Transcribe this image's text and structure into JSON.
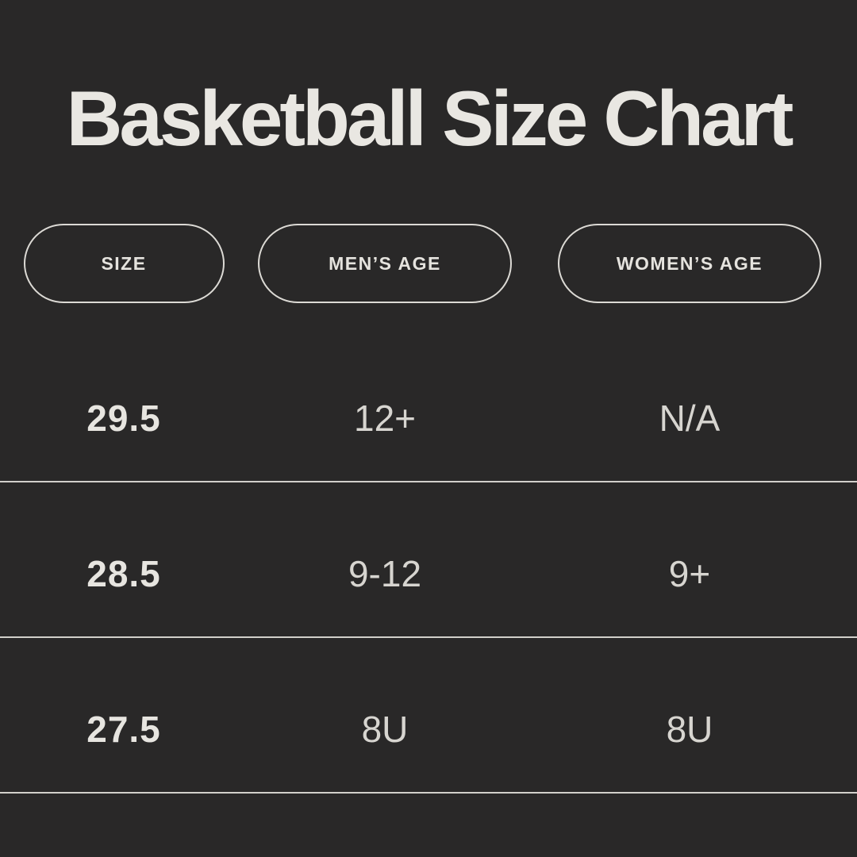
{
  "page": {
    "title": "Basketball Size Chart"
  },
  "colors": {
    "background": "#292828",
    "text_primary": "#e9e7e2",
    "text_secondary": "#d7d5d0",
    "pill_border": "#dcdad5",
    "divider": "#d2d0cb"
  },
  "table": {
    "columns": [
      {
        "label": "SIZE"
      },
      {
        "label": "MEN’S AGE"
      },
      {
        "label": "WOMEN’S AGE"
      }
    ],
    "rows": [
      {
        "size": "29.5",
        "mens_age": "12+",
        "womens_age": "N/A"
      },
      {
        "size": "28.5",
        "mens_age": "9-12",
        "womens_age": "9+"
      },
      {
        "size": "27.5",
        "mens_age": "8U",
        "womens_age": "8U"
      }
    ]
  }
}
